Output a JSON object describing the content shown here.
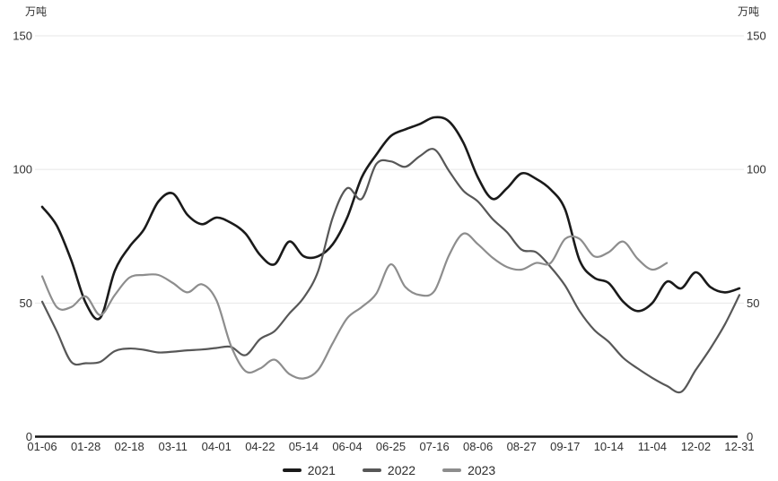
{
  "units": {
    "left": "万吨",
    "right": "万吨"
  },
  "legend": [
    {
      "label": "2021",
      "color": "#1a1a1a"
    },
    {
      "label": "2022",
      "color": "#575757"
    },
    {
      "label": "2023",
      "color": "#8d8d8d"
    }
  ],
  "colors": {
    "grid": "#e7e7e7",
    "axis": "#141414",
    "tick_text": "#303030",
    "x_label_text": "#303030"
  },
  "chart_data": {
    "type": "line",
    "title": "",
    "ylabel_left": "万吨",
    "ylabel_right": "万吨",
    "ylim": [
      0,
      150
    ],
    "y_ticks": [
      150,
      100,
      50,
      0
    ],
    "grid": "horizontal-only",
    "smooth": true,
    "legend_position": "bottom-center",
    "x_tick_labels": [
      "01-06",
      "01-28",
      "02-18",
      "03-11",
      "04-01",
      "04-22",
      "05-14",
      "06-04",
      "06-25",
      "07-16",
      "08-06",
      "08-27",
      "09-17",
      "10-14",
      "11-04",
      "12-02",
      "12-31"
    ],
    "points_per_label": 3,
    "total_points": 49,
    "series": [
      {
        "name": "2021",
        "color": "#1a1a1a",
        "width": 2.6,
        "values": [
          86,
          79,
          66,
          50,
          44.5,
          62,
          71,
          77.5,
          88,
          91,
          83,
          79.5,
          82,
          80,
          76,
          68,
          64.5,
          73,
          67.5,
          67.5,
          72,
          82,
          97,
          105.5,
          112.5,
          115,
          117,
          119.5,
          118,
          110,
          97,
          89,
          93,
          98.5,
          96.5,
          92.5,
          85,
          66,
          59.5,
          57.5,
          50.5,
          47,
          50,
          58,
          55.5,
          61.5,
          56,
          54,
          55.5
        ]
      },
      {
        "name": "2022",
        "color": "#575757",
        "width": 2.2,
        "values": [
          50.5,
          39.5,
          28,
          27.5,
          28,
          32,
          33,
          32.5,
          31.5,
          31.8,
          32.3,
          32.6,
          33.2,
          33.6,
          30.5,
          36.5,
          39.5,
          46,
          52,
          62,
          82,
          93,
          89,
          102,
          103,
          101,
          105,
          107.5,
          99.5,
          92,
          88,
          81.5,
          76.5,
          70,
          69,
          63.5,
          56.5,
          47,
          40,
          35.5,
          29.5,
          25.5,
          22,
          19,
          16.8,
          25,
          33,
          42,
          53
        ]
      },
      {
        "name": "2023",
        "color": "#8d8d8d",
        "width": 2.2,
        "values": [
          60,
          48.5,
          48.5,
          52.5,
          45.5,
          53,
          59.5,
          60.5,
          60.5,
          57.5,
          54,
          57,
          51,
          34,
          24.5,
          25.5,
          28.8,
          23.5,
          21.8,
          25,
          35,
          44.3,
          48.5,
          53.5,
          64.5,
          56,
          53,
          54.5,
          67.8,
          76,
          72,
          67,
          63.5,
          62.5,
          65,
          65,
          74,
          74,
          67.5,
          69,
          73,
          66.5,
          62.5,
          65
        ]
      }
    ]
  }
}
